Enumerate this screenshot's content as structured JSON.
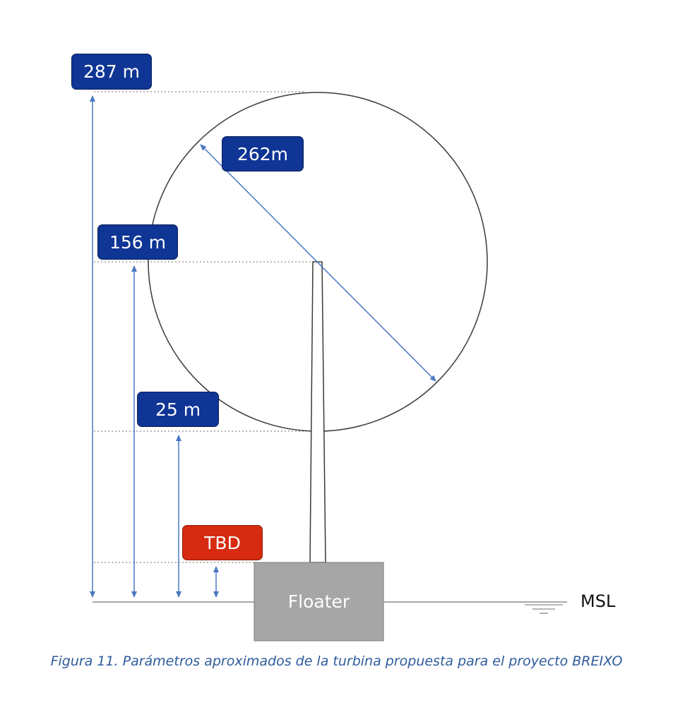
{
  "labels": {
    "total_height": "287 m",
    "rotor_diameter": "262m",
    "hub_height": "156 m",
    "tip_clearance": "25 m",
    "freeboard": "TBD"
  },
  "floater": {
    "label": "Floater"
  },
  "sea_level": {
    "label": "MSL"
  },
  "caption": "Figura 11. Parámetros aproximados de la turbina propuesta para el proyecto BREIXO",
  "colors": {
    "label_blue": "#0f3595",
    "label_red": "#d62b10",
    "arrow_blue": "#4a78c2",
    "floater_gray": "#a6a6a6",
    "caption_blue": "#2e5b9c"
  }
}
